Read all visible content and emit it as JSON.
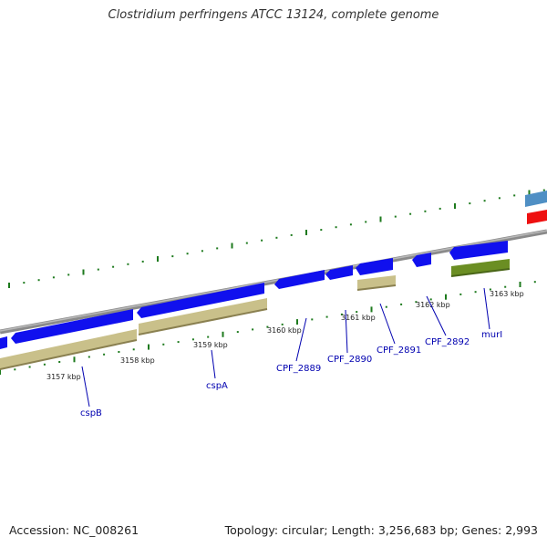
{
  "title": "Clostridium perfringens ATCC 13124, complete genome",
  "footer": {
    "accession": "Accession: NC_008261",
    "summary": "Topology: circular; Length: 3,256,683 bp; Genes: 2,993"
  },
  "colors": {
    "backbone": "#8a8a8a",
    "gene_blue": "#1010ee",
    "cds_khaki": "#c9c08a",
    "cds_olive": "#6b8e23",
    "accent_steel": "#4f8fc4",
    "accent_red": "#ee1010",
    "tick_green": "#1d7a1d",
    "label_blue": "#0000b0"
  },
  "ticks": [
    {
      "kbp": 3157,
      "label": "3157 kbp"
    },
    {
      "kbp": 3158,
      "label": "3158 kbp"
    },
    {
      "kbp": 3159,
      "label": "3159 kbp"
    },
    {
      "kbp": 3160,
      "label": "3160 kbp"
    },
    {
      "kbp": 3161,
      "label": "3161 kbp"
    },
    {
      "kbp": 3162,
      "label": "3162 kbp"
    },
    {
      "kbp": 3163,
      "label": "3163 kbp"
    }
  ],
  "gene_labels": [
    {
      "name": "cspB"
    },
    {
      "name": "cspA"
    },
    {
      "name": "CPF_2889"
    },
    {
      "name": "CPF_2890"
    },
    {
      "name": "CPF_2891"
    },
    {
      "name": "CPF_2892"
    },
    {
      "name": "murI"
    }
  ]
}
